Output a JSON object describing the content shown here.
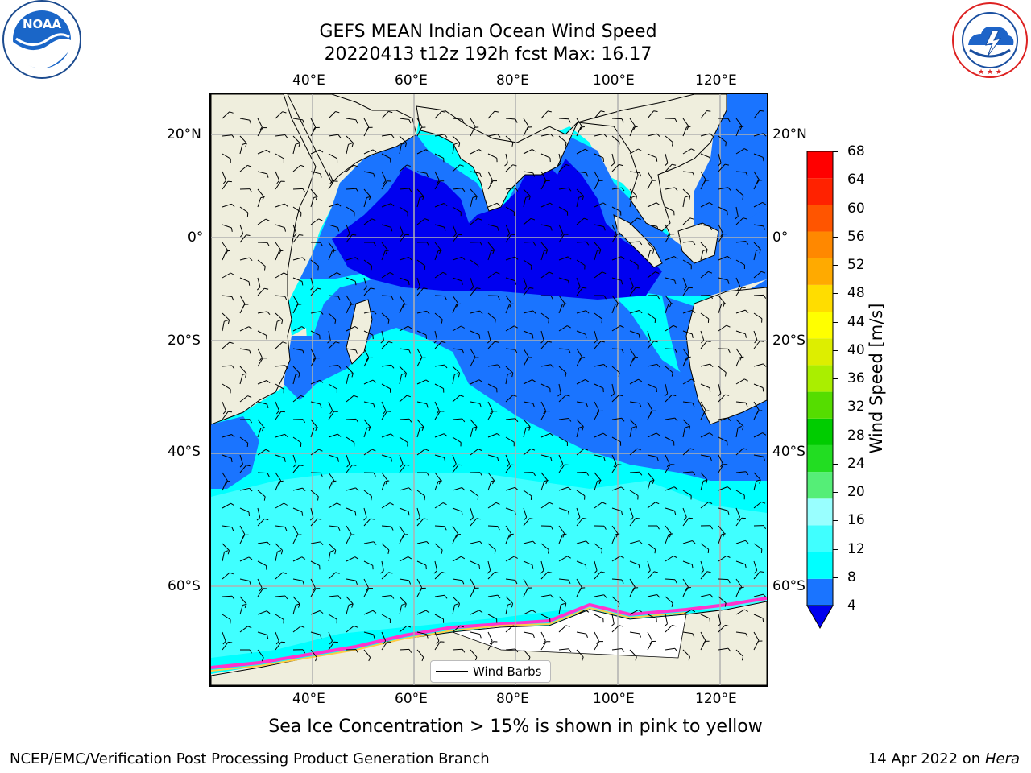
{
  "header": {
    "title_line1": "GEFS MEAN Indian Ocean Wind Speed",
    "title_line2": "20220413 t12z 192h fcst   Max: 16.17"
  },
  "logos": {
    "left": {
      "text": "NOAA",
      "ring_text": "NATIONAL OCEANIC AND ATMOSPHERIC ADMINISTRATION · U.S. DEPARTMENT OF COMMERCE"
    },
    "right": {
      "ring_text": "NATIONAL WEATHER SERVICE"
    }
  },
  "map": {
    "lon_labels_top": [
      "40°E",
      "60°E",
      "80°E",
      "100°E",
      "120°E"
    ],
    "lon_labels_bottom": [
      "40°E",
      "60°E",
      "80°E",
      "100°E",
      "120°E"
    ],
    "lat_labels_left": [
      "20°N",
      "0°",
      "20°S",
      "40°S",
      "60°S"
    ],
    "lat_labels_right": [
      "20°N",
      "0°",
      "20°S",
      "40°S",
      "60°S"
    ],
    "legend_label": "Wind Barbs",
    "colors": {
      "land": "#efeedd",
      "bin_4_8": "#1a74ff",
      "bin_0_4": "#0000f0",
      "bin_8_12": "#00ffff",
      "bin_12_16": "#40ffff",
      "ice": "#ff33cc"
    }
  },
  "colorbar": {
    "label": "Wind Speed [m/s]",
    "ticks": [
      "4",
      "8",
      "12",
      "16",
      "20",
      "24",
      "28",
      "32",
      "36",
      "40",
      "44",
      "48",
      "52",
      "56",
      "60",
      "64",
      "68"
    ],
    "colors": [
      "#1a74ff",
      "#00ffff",
      "#40ffff",
      "#99ffff",
      "#55ee77",
      "#22dd22",
      "#00cc00",
      "#55dd00",
      "#aaee00",
      "#ddee00",
      "#ffff00",
      "#ffdd00",
      "#ffaa00",
      "#ff8800",
      "#ff5500",
      "#ff2200",
      "#ff0000"
    ],
    "under_color": "#0000ee"
  },
  "caption": "Sea Ice Concentration > 15% is shown in pink to yellow",
  "footer": {
    "left": "NCEP/EMC/Verification Post Processing Product Generation Branch",
    "right_prefix": "14 Apr 2022 on ",
    "right_host": "Hera"
  }
}
